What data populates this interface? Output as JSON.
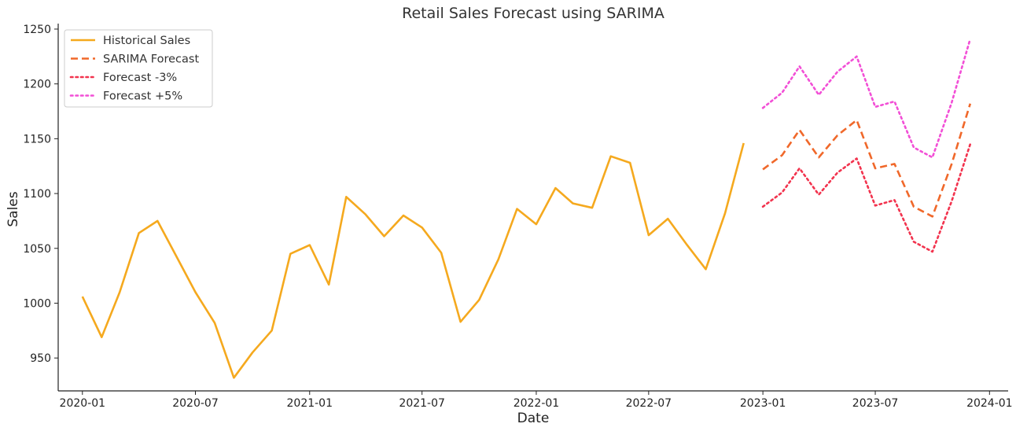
{
  "chart_data": {
    "type": "line",
    "title": "Retail Sales Forecast using SARIMA",
    "xlabel": "Date",
    "ylabel": "Sales",
    "ylim": [
      920,
      1255
    ],
    "xlim": [
      "2019-11-23",
      "2024-01-31"
    ],
    "x_ticks": [
      "2020-01",
      "2020-07",
      "2021-01",
      "2021-07",
      "2022-01",
      "2022-07",
      "2023-01",
      "2023-07",
      "2024-01"
    ],
    "y_ticks": [
      950,
      1000,
      1050,
      1100,
      1150,
      1200,
      1250
    ],
    "grid": false,
    "legend_position": "top-left",
    "series": [
      {
        "name": "Historical Sales",
        "color": "#f5a91e",
        "style": "solid",
        "x": [
          "2020-01",
          "2020-02",
          "2020-03",
          "2020-04",
          "2020-05",
          "2020-06",
          "2020-07",
          "2020-08",
          "2020-09",
          "2020-10",
          "2020-11",
          "2020-12",
          "2021-01",
          "2021-02",
          "2021-03",
          "2021-04",
          "2021-05",
          "2021-06",
          "2021-07",
          "2021-08",
          "2021-09",
          "2021-10",
          "2021-11",
          "2021-12",
          "2022-01",
          "2022-02",
          "2022-03",
          "2022-04",
          "2022-05",
          "2022-06",
          "2022-07",
          "2022-08",
          "2022-09",
          "2022-10",
          "2022-11",
          "2022-12"
        ],
        "values": [
          1006,
          969,
          1010,
          1064,
          1075,
          1042,
          1010,
          982,
          932,
          955,
          975,
          1045,
          1053,
          1017,
          1097,
          1081,
          1061,
          1080,
          1069,
          1046,
          983,
          1003,
          1040,
          1086,
          1072,
          1105,
          1091,
          1087,
          1134,
          1128,
          1062,
          1077,
          1053,
          1031,
          1082,
          1146
        ]
      },
      {
        "name": "SARIMA Forecast",
        "color": "#f0682a",
        "style": "dashed",
        "x": [
          "2023-01",
          "2023-02",
          "2023-03",
          "2023-04",
          "2023-05",
          "2023-06",
          "2023-07",
          "2023-08",
          "2023-09",
          "2023-10",
          "2023-11",
          "2023-12"
        ],
        "values": [
          1122,
          1135,
          1158,
          1133,
          1153,
          1167,
          1123,
          1127,
          1088,
          1079,
          1127,
          1182
        ]
      },
      {
        "name": "Forecast -3%",
        "color": "#f2334e",
        "style": "dotted",
        "x": [
          "2023-01",
          "2023-02",
          "2023-03",
          "2023-04",
          "2023-05",
          "2023-06",
          "2023-07",
          "2023-08",
          "2023-09",
          "2023-10",
          "2023-11",
          "2023-12"
        ],
        "values": [
          1088,
          1101,
          1123,
          1099,
          1119,
          1132,
          1089,
          1094,
          1056,
          1047,
          1093,
          1145
        ]
      },
      {
        "name": "Forecast +5%",
        "color": "#f24fd6",
        "style": "dotted",
        "x": [
          "2023-01",
          "2023-02",
          "2023-03",
          "2023-04",
          "2023-05",
          "2023-06",
          "2023-07",
          "2023-08",
          "2023-09",
          "2023-10",
          "2023-11",
          "2023-12"
        ],
        "values": [
          1178,
          1192,
          1216,
          1190,
          1211,
          1225,
          1179,
          1184,
          1142,
          1133,
          1183,
          1241
        ]
      }
    ]
  }
}
